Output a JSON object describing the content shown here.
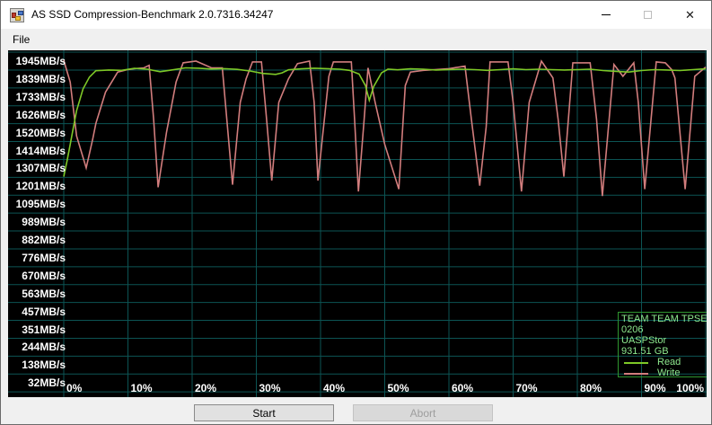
{
  "window": {
    "title": "AS SSD Compression-Benchmark 2.0.7316.34247",
    "icons": {
      "app": "app-icon",
      "minimize": "minimize-icon",
      "maximize": "maximize-icon",
      "close": "close-icon"
    },
    "close_glyph": "✕"
  },
  "menu": {
    "items": [
      {
        "label": "File"
      }
    ]
  },
  "footer": {
    "start_label": "Start",
    "abort_label": "Abort"
  },
  "chart_data": {
    "type": "line",
    "bg_color": "#000000",
    "grid": true,
    "grid_color": "#0c5454",
    "axis_text_color": "#ffffff",
    "x_ticks": [
      "0%",
      "10%",
      "20%",
      "30%",
      "40%",
      "50%",
      "60%",
      "70%",
      "80%",
      "90%",
      "100%"
    ],
    "x_tick_values": [
      0,
      10,
      20,
      30,
      40,
      50,
      60,
      70,
      80,
      90,
      100
    ],
    "y_ticks": [
      "1945MB/s",
      "1839MB/s",
      "1733MB/s",
      "1626MB/s",
      "1520MB/s",
      "1414MB/s",
      "1307MB/s",
      "1201MB/s",
      "1095MB/s",
      "989MB/s",
      "882MB/s",
      "776MB/s",
      "670MB/s",
      "563MB/s",
      "457MB/s",
      "351MB/s",
      "244MB/s",
      "138MB/s",
      "32MB/s"
    ],
    "y_tick_values": [
      1945,
      1839,
      1733,
      1626,
      1520,
      1414,
      1307,
      1201,
      1095,
      989,
      882,
      776,
      670,
      563,
      457,
      351,
      244,
      138,
      32
    ],
    "ylim": [
      32,
      1945
    ],
    "xlim": [
      0,
      100
    ],
    "legend_position": "bottom-right",
    "legend_info": {
      "device": "TEAM TEAM TPSECG",
      "firmware": "0206",
      "driver": "UASPStor",
      "capacity": "931.51 GB"
    },
    "series": [
      {
        "name": "Write",
        "color": "#d27d7d",
        "points": [
          [
            0,
            1950
          ],
          [
            1,
            1820
          ],
          [
            2,
            1500
          ],
          [
            3.5,
            1310
          ],
          [
            4.5,
            1480
          ],
          [
            5,
            1575
          ],
          [
            6.5,
            1760
          ],
          [
            8.4,
            1880
          ],
          [
            10,
            1895
          ],
          [
            11,
            1900
          ],
          [
            12.5,
            1905
          ],
          [
            13.3,
            1920
          ],
          [
            14,
            1600
          ],
          [
            14.7,
            1195
          ],
          [
            16,
            1520
          ],
          [
            17.5,
            1820
          ],
          [
            18.6,
            1935
          ],
          [
            20.6,
            1945
          ],
          [
            23,
            1905
          ],
          [
            24.7,
            1905
          ],
          [
            25.4,
            1600
          ],
          [
            26.3,
            1210
          ],
          [
            27.5,
            1700
          ],
          [
            28.4,
            1840
          ],
          [
            29.4,
            1940
          ],
          [
            30.8,
            1940
          ],
          [
            31.6,
            1600
          ],
          [
            32.4,
            1235
          ],
          [
            33.5,
            1700
          ],
          [
            35,
            1840
          ],
          [
            36.4,
            1930
          ],
          [
            38.3,
            1945
          ],
          [
            39,
            1700
          ],
          [
            39.6,
            1235
          ],
          [
            41.3,
            1855
          ],
          [
            42,
            1940
          ],
          [
            44.8,
            1940
          ],
          [
            45.3,
            1600
          ],
          [
            45.9,
            1170
          ],
          [
            46.8,
            1600
          ],
          [
            47.4,
            1905
          ],
          [
            48.5,
            1700
          ],
          [
            50,
            1450
          ],
          [
            52.2,
            1184
          ],
          [
            53.2,
            1800
          ],
          [
            54,
            1880
          ],
          [
            56,
            1890
          ],
          [
            58,
            1895
          ],
          [
            60,
            1900
          ],
          [
            62.5,
            1915
          ],
          [
            63.5,
            1600
          ],
          [
            64.8,
            1205
          ],
          [
            65.8,
            1554
          ],
          [
            66.4,
            1940
          ],
          [
            69.2,
            1940
          ],
          [
            70,
            1700
          ],
          [
            71.3,
            1170
          ],
          [
            72.5,
            1700
          ],
          [
            74.4,
            1945
          ],
          [
            76.2,
            1845
          ],
          [
            77,
            1600
          ],
          [
            77.9,
            1258
          ],
          [
            79.3,
            1935
          ],
          [
            82,
            1935
          ],
          [
            83,
            1600
          ],
          [
            83.9,
            1143
          ],
          [
            85.7,
            1925
          ],
          [
            87.1,
            1855
          ],
          [
            88.8,
            1935
          ],
          [
            89.5,
            1700
          ],
          [
            90.5,
            1184
          ],
          [
            92.3,
            1940
          ],
          [
            93.7,
            1935
          ],
          [
            94.7,
            1895
          ],
          [
            95.2,
            1845
          ],
          [
            96.8,
            1184
          ],
          [
            98.3,
            1855
          ],
          [
            100,
            1910
          ]
        ]
      },
      {
        "name": "Read",
        "color": "#7ec827",
        "points": [
          [
            0,
            1258
          ],
          [
            0.5,
            1350
          ],
          [
            1,
            1450
          ],
          [
            1.5,
            1550
          ],
          [
            2,
            1650
          ],
          [
            3,
            1780
          ],
          [
            4,
            1850
          ],
          [
            5,
            1888
          ],
          [
            7,
            1892
          ],
          [
            9,
            1890
          ],
          [
            11,
            1902
          ],
          [
            13,
            1897
          ],
          [
            15,
            1882
          ],
          [
            17,
            1893
          ],
          [
            19,
            1905
          ],
          [
            21,
            1903
          ],
          [
            23,
            1898
          ],
          [
            25,
            1900
          ],
          [
            27,
            1896
          ],
          [
            29,
            1886
          ],
          [
            31,
            1872
          ],
          [
            33,
            1866
          ],
          [
            34,
            1875
          ],
          [
            35,
            1893
          ],
          [
            37,
            1899
          ],
          [
            39,
            1903
          ],
          [
            41,
            1900
          ],
          [
            43,
            1897
          ],
          [
            44.5,
            1890
          ],
          [
            46,
            1868
          ],
          [
            47,
            1800
          ],
          [
            47.6,
            1712
          ],
          [
            48.3,
            1795
          ],
          [
            49.5,
            1875
          ],
          [
            50.5,
            1897
          ],
          [
            52,
            1893
          ],
          [
            54,
            1899
          ],
          [
            56,
            1897
          ],
          [
            58,
            1892
          ],
          [
            60,
            1895
          ],
          [
            62,
            1897
          ],
          [
            64,
            1894
          ],
          [
            66,
            1890
          ],
          [
            68,
            1894
          ],
          [
            70,
            1899
          ],
          [
            72,
            1894
          ],
          [
            74,
            1897
          ],
          [
            76,
            1894
          ],
          [
            78,
            1892
          ],
          [
            80,
            1894
          ],
          [
            82,
            1897
          ],
          [
            84,
            1889
          ],
          [
            86,
            1884
          ],
          [
            88,
            1880
          ],
          [
            90,
            1889
          ],
          [
            92,
            1894
          ],
          [
            94,
            1892
          ],
          [
            96,
            1889
          ],
          [
            98,
            1894
          ],
          [
            100,
            1899
          ]
        ]
      }
    ]
  }
}
